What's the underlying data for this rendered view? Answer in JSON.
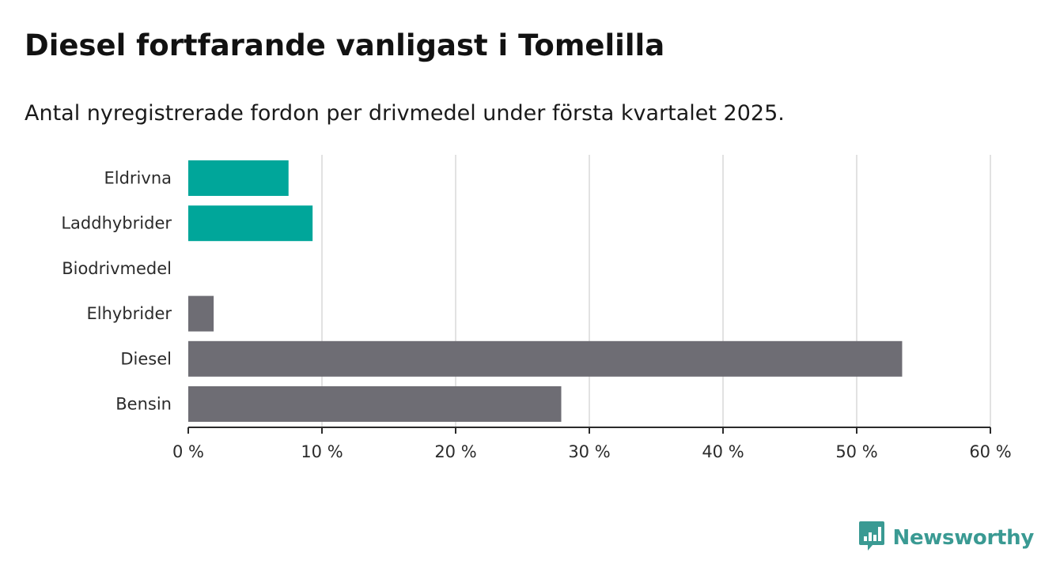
{
  "title": "Diesel fortfarande vanligast i Tomelilla",
  "subtitle": "Antal nyregistrerade fordon per drivmedel under första kvartalet 2025.",
  "colors": {
    "highlight": "#00a69a",
    "muted": "#6e6d74",
    "grid": "#d9d9d9",
    "axis": "#2b2b2b",
    "brand": "#3a9a93"
  },
  "brand": {
    "name": "Newsworthy",
    "icon": "newsworthy-logo-icon"
  },
  "chart_data": {
    "type": "bar",
    "orientation": "horizontal",
    "categories": [
      "Eldrivna",
      "Laddhybrider",
      "Biodrivmedel",
      "Elhybrider",
      "Diesel",
      "Bensin"
    ],
    "values": [
      7.5,
      9.3,
      0,
      1.9,
      53.4,
      27.9
    ],
    "highlighted": [
      true,
      true,
      false,
      false,
      false,
      false
    ],
    "xlim": [
      0,
      60
    ],
    "x_ticks": [
      0,
      10,
      20,
      30,
      40,
      50,
      60
    ],
    "x_tick_labels": [
      "0 %",
      "10 %",
      "20 %",
      "30 %",
      "40 %",
      "50 %",
      "60 %"
    ],
    "grid": "vertical",
    "legend": "none"
  }
}
